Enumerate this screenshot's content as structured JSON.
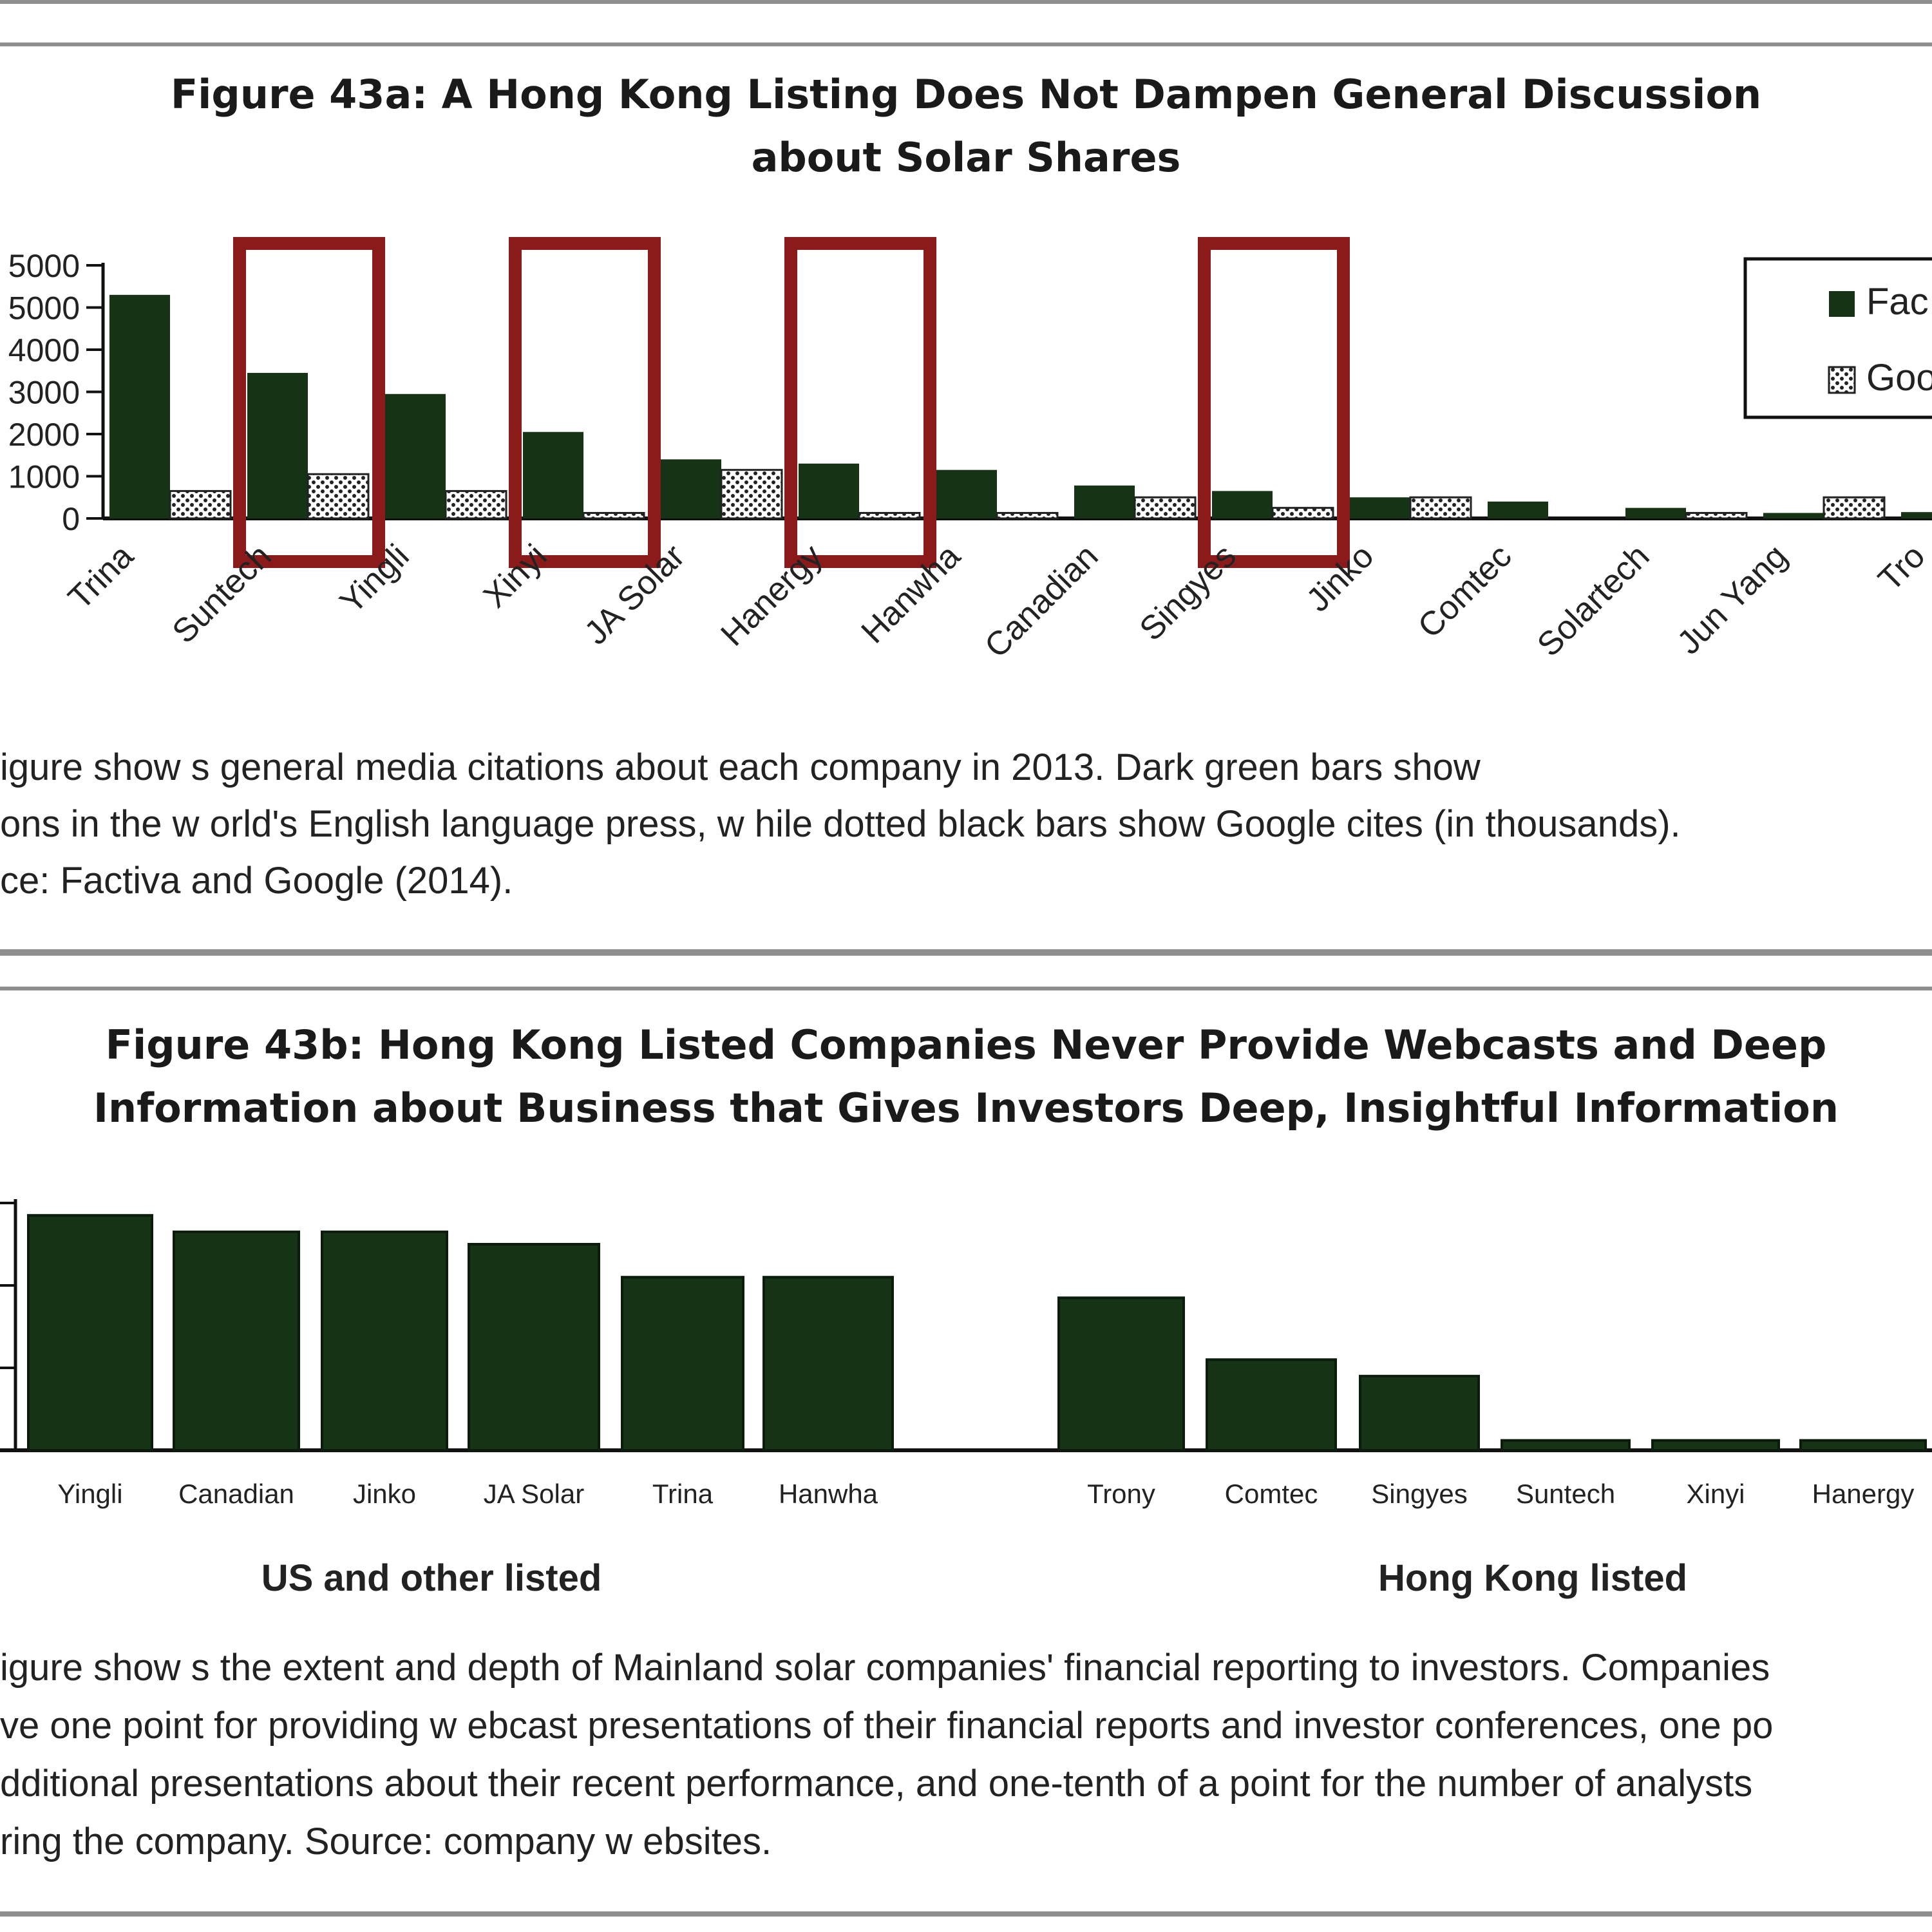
{
  "colors": {
    "bar": "#163316",
    "highlight": "#8b1a1a",
    "dotted_fill": "#ffffff",
    "rule": "#8e8e8e"
  },
  "chart_data": [
    {
      "type": "bar",
      "title": "Figure 43a: A Hong Kong Listing Does Not Dampen General Discussion\nabout Solar Shares",
      "categories": [
        "Trina",
        "Suntech",
        "Yingli",
        "Xinyi",
        "JA Solar",
        "Hanergy",
        "Hanwha",
        "Canadian",
        "Singyes",
        "Jinko",
        "Comtec",
        "Solartech",
        "Jun Yang",
        "Tro"
      ],
      "series": [
        {
          "name": "Fac",
          "style": "solid dark green",
          "values": [
            5300,
            3450,
            2950,
            2050,
            1400,
            1300,
            1150,
            780,
            650,
            500,
            400,
            250,
            130,
            150
          ]
        },
        {
          "name": "Goo",
          "style": "dotted",
          "values": [
            650,
            1050,
            650,
            130,
            1150,
            130,
            130,
            500,
            250,
            500,
            0,
            130,
            500,
            0
          ]
        }
      ],
      "y_ticks": [
        "0",
        "1000",
        "2000",
        "3000",
        "4000",
        "5000",
        "6000"
      ],
      "y_tick_labels_visible": [
        "0",
        "1000",
        "2000",
        "3000",
        "4000",
        "5000",
        "5000"
      ],
      "ylim": [
        0,
        6000
      ],
      "highlighted_categories": [
        "Suntech",
        "Xinyi",
        "Hanergy",
        "Singyes"
      ],
      "legend": {
        "placement": "top-right",
        "entries": [
          "Fac",
          "Goo"
        ]
      },
      "caption": [
        "igure show s general media citations about each company in 2013. Dark green bars show",
        "ons in the w orld's English language press, w hile dotted black bars show  Google cites (in thousands).",
        "ce: Factiva and Google (2014)."
      ]
    },
    {
      "type": "bar",
      "title": "Figure 43b: Hong Kong Listed Companies Never Provide Webcasts and Deep\nInformation about Business that Gives Investors Deep, Insightful Information",
      "categories": [
        "Yingli",
        "Canadian",
        "Jinko",
        "JA Solar",
        "Trina",
        "Hanwha",
        "Trony",
        "Comtec",
        "Singyes",
        "Suntech",
        "Xinyi",
        "Hanergy"
      ],
      "values": [
        2.85,
        2.65,
        2.65,
        2.5,
        2.1,
        2.1,
        1.85,
        1.1,
        0.9,
        0.12,
        0.12,
        0.12
      ],
      "ylim": [
        0,
        3
      ],
      "groups": [
        {
          "label": "US and other listed",
          "categories": [
            "Yingli",
            "Canadian",
            "Jinko",
            "JA Solar",
            "Trina",
            "Hanwha"
          ]
        },
        {
          "label": "Hong Kong listed",
          "categories": [
            "Trony",
            "Comtec",
            "Singyes",
            "Suntech",
            "Xinyi",
            "Hanergy"
          ]
        }
      ],
      "caption": [
        "igure show s the extent and depth of Mainland solar companies' financial reporting to investors. Companies",
        "ve one point for providing w ebcast presentations of their financial reports and investor conferences, one po",
        "dditional presentations about their recent performance, and one-tenth of a point for the number of analysts",
        "ring the company. Source: company w ebsites."
      ]
    }
  ]
}
